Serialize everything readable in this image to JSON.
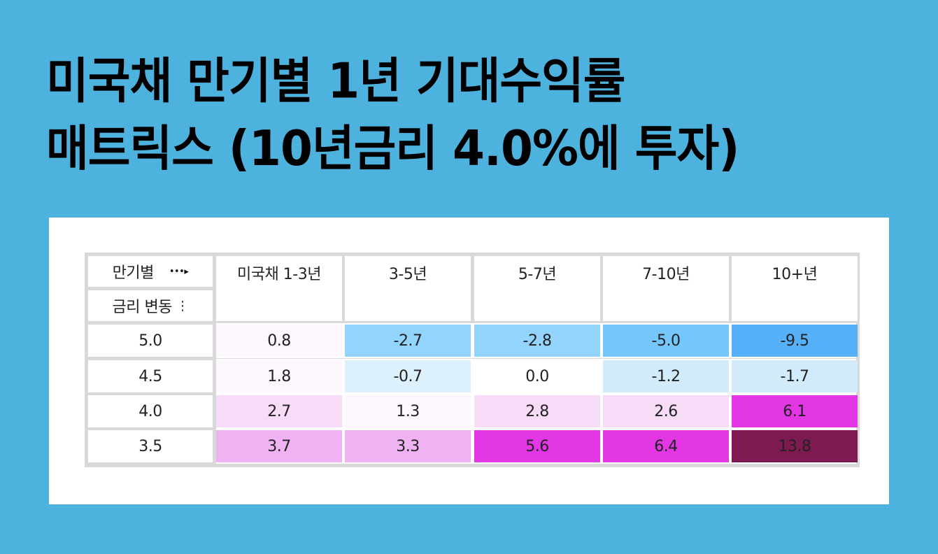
{
  "title": {
    "line1": "미국채 만기별 1년 기대수익률",
    "line2": "매트릭스 (10년금리 4.0%에 투자)"
  },
  "colors": {
    "background": "#4db2dd",
    "panel": "#ffffff",
    "grid_border": "#d9d9d9"
  },
  "table": {
    "corner_top_label": "만기별",
    "corner_top_icon": "dotted-right-arrow-icon",
    "corner_bottom_label": "금리 변동",
    "corner_bottom_icon": "dotted-down-arrow-icon",
    "columns": [
      "미국채 1-3년",
      "3-5년",
      "5-7년",
      "7-10년",
      "10+년"
    ],
    "rows": [
      {
        "rate": "5.0",
        "values": [
          "0.8",
          "-2.7",
          "-2.8",
          "-5.0",
          "-9.5"
        ],
        "colors": [
          "#fcf6fd",
          "#93d4fd",
          "#93d4fd",
          "#75c6fa",
          "#55b0f8"
        ]
      },
      {
        "rate": "4.5",
        "values": [
          "1.8",
          "-0.7",
          "0.0",
          "-1.2",
          "-1.7"
        ],
        "colors": [
          "#fcf6fd",
          "#ddf1fc",
          "#ffffff",
          "#d1ebfc",
          "#d1ebfc"
        ]
      },
      {
        "rate": "4.0",
        "values": [
          "2.7",
          "1.3",
          "2.8",
          "2.6",
          "6.1"
        ],
        "colors": [
          "#f7dcf8",
          "#fcf6fd",
          "#f7dcf8",
          "#f7dcf8",
          "#e337e6"
        ]
      },
      {
        "rate": "3.5",
        "values": [
          "3.7",
          "3.3",
          "5.6",
          "6.4",
          "13.8"
        ],
        "colors": [
          "#efb3f3",
          "#efb3f3",
          "#e337e6",
          "#e337e6",
          "#7d1a4f"
        ]
      }
    ]
  },
  "chart_data": {
    "type": "heatmap",
    "title": "미국채 만기별 1년 기대수익률 매트릭스 (10년금리 4.0%에 투자)",
    "xlabel": "만기별",
    "ylabel": "금리 변동",
    "x": [
      "미국채 1-3년",
      "3-5년",
      "5-7년",
      "7-10년",
      "10+년"
    ],
    "y": [
      "5.0",
      "4.5",
      "4.0",
      "3.5"
    ],
    "values": [
      [
        0.8,
        -2.7,
        -2.8,
        -5.0,
        -9.5
      ],
      [
        1.8,
        -0.7,
        0.0,
        -1.2,
        -1.7
      ],
      [
        2.7,
        1.3,
        2.8,
        2.6,
        6.1
      ],
      [
        3.7,
        3.3,
        5.6,
        6.4,
        13.8
      ]
    ],
    "color_scale": "negative=blue, positive=pink/magenta to dark maroon",
    "legend": "none"
  }
}
